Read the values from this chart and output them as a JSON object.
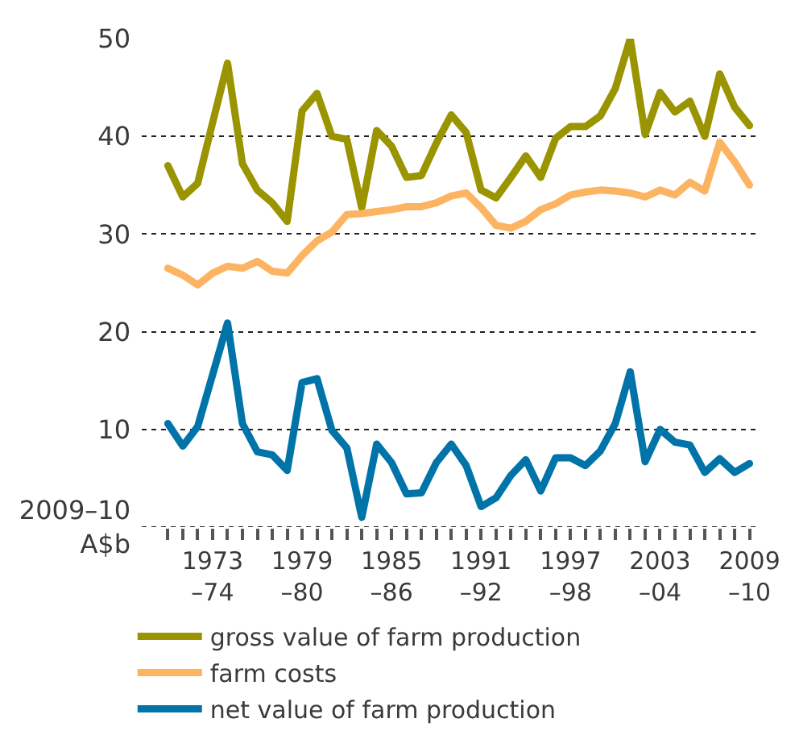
{
  "chart_data": {
    "type": "line",
    "categories": [
      null,
      null,
      null,
      "1973\n–74",
      null,
      null,
      null,
      null,
      null,
      "1979\n–80",
      null,
      null,
      null,
      null,
      null,
      "1985\n–86",
      null,
      null,
      null,
      null,
      null,
      "1991\n–92",
      null,
      null,
      null,
      null,
      null,
      "1997\n–98",
      null,
      null,
      null,
      null,
      null,
      "2003\n–04",
      null,
      null,
      null,
      null,
      null,
      "2009\n–10"
    ],
    "series": [
      {
        "name": "gross value of farm production",
        "color": "#999400",
        "values": [
          37.0,
          33.8,
          35.2,
          41.4,
          47.5,
          37.2,
          34.5,
          33.2,
          31.3,
          42.6,
          44.4,
          40.0,
          39.7,
          32.7,
          40.6,
          39.0,
          35.8,
          36.0,
          39.3,
          42.2,
          40.4,
          34.5,
          33.7,
          35.8,
          38.0,
          35.8,
          39.8,
          41.0,
          41.0,
          42.1,
          44.9,
          50.0,
          40.2,
          44.5,
          42.5,
          43.6,
          40.0,
          46.4,
          43.0,
          41.1
        ]
      },
      {
        "name": "farm costs",
        "color": "#fdb462",
        "values": [
          26.5,
          25.8,
          24.8,
          26.0,
          26.7,
          26.5,
          27.2,
          26.2,
          26.0,
          27.8,
          29.3,
          30.2,
          32.0,
          32.1,
          32.3,
          32.5,
          32.8,
          32.8,
          33.2,
          33.9,
          34.2,
          32.7,
          30.9,
          30.6,
          31.3,
          32.5,
          33.1,
          34.0,
          34.3,
          34.5,
          34.4,
          34.2,
          33.8,
          34.5,
          34.0,
          35.3,
          34.4,
          39.4,
          37.4,
          35.0
        ]
      },
      {
        "name": "net value of farm production",
        "color": "#0073a8",
        "values": [
          10.6,
          8.3,
          10.3,
          15.6,
          20.9,
          10.6,
          7.7,
          7.4,
          5.8,
          14.8,
          15.2,
          9.9,
          8.1,
          1.0,
          8.5,
          6.6,
          3.4,
          3.5,
          6.6,
          8.5,
          6.3,
          2.1,
          3.0,
          5.3,
          6.9,
          3.7,
          7.1,
          7.1,
          6.3,
          7.8,
          10.6,
          15.9,
          6.7,
          10.0,
          8.7,
          8.4,
          5.6,
          7.0,
          5.6,
          6.5
        ]
      }
    ],
    "ylim": [
      0,
      50
    ],
    "yticks": [
      {
        "value": 0,
        "label": "2009–10\nA$b"
      },
      10,
      20,
      30,
      40,
      50
    ],
    "grid": "y",
    "legend": "bottom",
    "marker": "none",
    "line_style": "solid"
  }
}
